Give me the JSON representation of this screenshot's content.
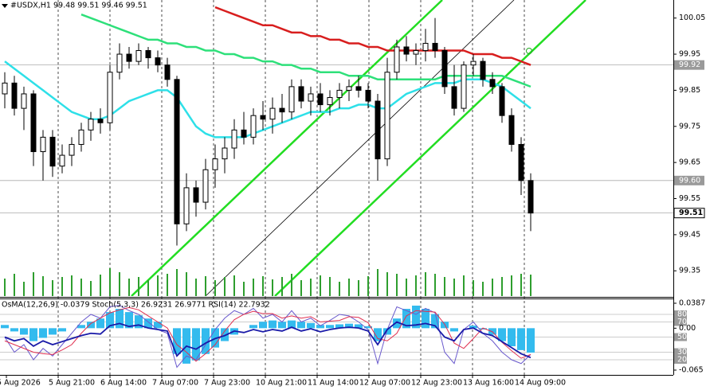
{
  "chart_data": {
    "type": "candlestick",
    "title": "#USDX,H1  99.48 99.51 99.46 99.51",
    "indicator_title": "OsMA(12,26,9) -0.0379  Stoch(5,3,3) 26.9231 26.9771  RSI(14) 22.7932",
    "time_labels": [
      "5 Aug 2026",
      "5 Aug 21:00",
      "6 Aug 14:00",
      "7 Aug 07:00",
      "7 Aug 23:00",
      "10 Aug 21:00",
      "11 Aug 14:00",
      "12 Aug 07:00",
      "12 Aug 23:00",
      "13 Aug 16:00",
      "14 Aug 09:00"
    ],
    "ylim": [
      99.28,
      100.1
    ],
    "yticks": [
      100.05,
      99.95,
      99.85,
      99.75,
      99.65,
      99.55,
      99.45,
      99.35
    ],
    "price_levels": [
      99.92,
      {
        "value": 99.6,
        "label": "99.60"
      },
      99.51
    ],
    "up_color": "#000000",
    "down_color": "#000000",
    "candles": [
      [
        99.84,
        99.9,
        99.8,
        99.87
      ],
      [
        99.87,
        99.89,
        99.78,
        99.8
      ],
      [
        99.8,
        99.86,
        99.74,
        99.84
      ],
      [
        99.84,
        99.85,
        99.64,
        99.68
      ],
      [
        99.68,
        99.74,
        99.6,
        99.72
      ],
      [
        99.72,
        99.74,
        99.61,
        99.64
      ],
      [
        99.64,
        99.7,
        99.62,
        99.67
      ],
      [
        99.67,
        99.72,
        99.64,
        99.7
      ],
      [
        99.7,
        99.76,
        99.68,
        99.74
      ],
      [
        99.74,
        99.79,
        99.71,
        99.77
      ],
      [
        99.77,
        99.8,
        99.73,
        99.76
      ],
      [
        99.76,
        99.92,
        99.74,
        99.9
      ],
      [
        99.9,
        99.98,
        99.88,
        99.95
      ],
      [
        99.95,
        99.97,
        99.91,
        99.93
      ],
      [
        99.93,
        99.98,
        99.92,
        99.96
      ],
      [
        99.96,
        99.97,
        99.91,
        99.94
      ],
      [
        99.94,
        99.96,
        99.9,
        99.92
      ],
      [
        99.92,
        99.94,
        99.86,
        99.88
      ],
      [
        99.88,
        99.89,
        99.42,
        99.48
      ],
      [
        99.48,
        99.62,
        99.46,
        99.58
      ],
      [
        99.58,
        99.6,
        99.5,
        99.54
      ],
      [
        99.54,
        99.66,
        99.52,
        99.63
      ],
      [
        99.63,
        99.7,
        99.58,
        99.66
      ],
      [
        99.66,
        99.72,
        99.62,
        99.69
      ],
      [
        99.69,
        99.77,
        99.66,
        99.74
      ],
      [
        99.74,
        99.79,
        99.7,
        99.72
      ],
      [
        99.72,
        99.8,
        99.7,
        99.78
      ],
      [
        99.78,
        99.82,
        99.74,
        99.77
      ],
      [
        99.77,
        99.83,
        99.73,
        99.8
      ],
      [
        99.8,
        99.84,
        99.76,
        99.79
      ],
      [
        99.79,
        99.88,
        99.77,
        99.86
      ],
      [
        99.86,
        99.88,
        99.8,
        99.82
      ],
      [
        99.82,
        99.86,
        99.78,
        99.84
      ],
      [
        99.84,
        99.87,
        99.79,
        99.81
      ],
      [
        99.81,
        99.85,
        99.78,
        99.83
      ],
      [
        99.83,
        99.87,
        99.8,
        99.85
      ],
      [
        99.85,
        99.88,
        99.82,
        99.86
      ],
      [
        99.86,
        99.89,
        99.83,
        99.85
      ],
      [
        99.85,
        99.87,
        99.8,
        99.82
      ],
      [
        99.82,
        99.84,
        99.6,
        99.66
      ],
      [
        99.66,
        99.94,
        99.64,
        99.9
      ],
      [
        99.9,
        99.99,
        99.88,
        99.97
      ],
      [
        99.97,
        100.0,
        99.93,
        99.95
      ],
      [
        99.95,
        99.98,
        99.92,
        99.96
      ],
      [
        99.96,
        100.02,
        99.93,
        99.98
      ],
      [
        99.98,
        100.05,
        99.94,
        99.96
      ],
      [
        99.96,
        99.97,
        99.84,
        99.86
      ],
      [
        99.86,
        99.92,
        99.78,
        99.8
      ],
      [
        99.8,
        99.93,
        99.79,
        99.92
      ],
      [
        99.92,
        99.95,
        99.89,
        99.93
      ],
      [
        99.93,
        99.94,
        99.86,
        99.88
      ],
      [
        99.88,
        99.9,
        99.84,
        99.86
      ],
      [
        99.86,
        99.87,
        99.76,
        99.78
      ],
      [
        99.78,
        99.8,
        99.68,
        99.7
      ],
      [
        99.7,
        99.72,
        99.56,
        99.6
      ],
      [
        99.6,
        99.62,
        99.46,
        99.51
      ]
    ],
    "volume_color": "#2e9e2e",
    "volumes": [
      22,
      28,
      18,
      30,
      25,
      20,
      24,
      26,
      22,
      19,
      27,
      35,
      30,
      22,
      24,
      20,
      26,
      28,
      34,
      30,
      22,
      25,
      20,
      24,
      26,
      18,
      22,
      25,
      21,
      24,
      28,
      20,
      22,
      26,
      24,
      18,
      22,
      20,
      25,
      34,
      30,
      28,
      22,
      26,
      30,
      28,
      24,
      22,
      26,
      20,
      18,
      22,
      24,
      26,
      28,
      27
    ],
    "volume_max": 40,
    "ma_series": [
      {
        "color": "#d81e1e",
        "values": [
          null,
          null,
          null,
          null,
          null,
          null,
          null,
          null,
          null,
          null,
          null,
          null,
          null,
          null,
          null,
          null,
          null,
          null,
          null,
          null,
          null,
          null,
          100.08,
          100.07,
          100.06,
          100.05,
          100.04,
          100.03,
          100.03,
          100.02,
          100.01,
          100.01,
          100.0,
          100.0,
          99.99,
          99.99,
          99.98,
          99.98,
          99.97,
          99.97,
          99.96,
          99.96,
          99.96,
          99.96,
          99.96,
          99.96,
          99.96,
          99.96,
          99.96,
          99.95,
          99.95,
          99.95,
          99.94,
          99.94,
          99.93,
          99.92
        ]
      },
      {
        "color": "#2ee07a",
        "values": [
          null,
          null,
          null,
          null,
          null,
          null,
          null,
          null,
          100.06,
          100.05,
          100.04,
          100.03,
          100.02,
          100.01,
          100.0,
          99.99,
          99.99,
          99.98,
          99.98,
          99.97,
          99.97,
          99.96,
          99.96,
          99.95,
          99.95,
          99.94,
          99.94,
          99.93,
          99.93,
          99.92,
          99.92,
          99.91,
          99.91,
          99.9,
          99.9,
          99.9,
          99.89,
          99.89,
          99.89,
          99.88,
          99.88,
          99.88,
          99.88,
          99.88,
          99.88,
          99.88,
          99.89,
          99.89,
          99.89,
          99.89,
          99.89,
          99.89,
          99.89,
          99.88,
          99.87,
          99.86
        ]
      },
      {
        "color": "#2ee0e8",
        "values": [
          99.93,
          99.91,
          99.89,
          99.87,
          99.85,
          99.83,
          99.81,
          99.79,
          99.78,
          99.77,
          99.77,
          99.78,
          99.8,
          99.82,
          99.83,
          99.84,
          99.85,
          99.85,
          99.83,
          99.79,
          99.75,
          99.73,
          99.72,
          99.72,
          99.72,
          99.72,
          99.73,
          99.74,
          99.75,
          99.76,
          99.77,
          99.78,
          99.79,
          99.79,
          99.79,
          99.8,
          99.8,
          99.81,
          99.81,
          99.8,
          99.8,
          99.82,
          99.84,
          99.85,
          99.86,
          99.87,
          99.87,
          99.87,
          99.88,
          99.88,
          99.88,
          99.87,
          99.86,
          99.84,
          99.82,
          99.8
        ]
      }
    ],
    "osma_lim": [
      -0.065,
      0.0387
    ],
    "osma_ticks": [
      0.0387,
      {
        "value": 0,
        "label": "0.00"
      },
      -0.065
    ],
    "osma_color": "#33bbee",
    "osma": [
      0.005,
      -0.005,
      -0.01,
      -0.02,
      -0.015,
      -0.01,
      -0.005,
      0.0,
      0.005,
      0.01,
      0.015,
      0.025,
      0.03,
      0.025,
      0.02,
      0.015,
      0.01,
      0.0,
      -0.04,
      -0.055,
      -0.05,
      -0.04,
      -0.03,
      -0.02,
      -0.01,
      0.0,
      0.005,
      0.01,
      0.012,
      0.01,
      0.012,
      0.01,
      0.008,
      0.005,
      0.005,
      0.006,
      0.007,
      0.006,
      0.003,
      -0.02,
      -0.01,
      0.015,
      0.03,
      0.035,
      0.03,
      0.022,
      0.01,
      -0.005,
      0.0,
      0.004,
      -0.002,
      -0.01,
      -0.02,
      -0.028,
      -0.034,
      -0.0379
    ],
    "osc_lim": [
      0,
      100
    ],
    "osc_ticks": [
      80,
      70,
      50,
      30,
      20
    ],
    "osc_series": [
      {
        "color": "#6a5acd",
        "values": [
          50,
          30,
          40,
          20,
          35,
          25,
          40,
          55,
          70,
          80,
          75,
          90,
          92,
          85,
          80,
          70,
          60,
          55,
          10,
          25,
          20,
          40,
          60,
          75,
          85,
          80,
          88,
          75,
          80,
          70,
          85,
          70,
          75,
          65,
          72,
          80,
          78,
          70,
          60,
          15,
          60,
          90,
          85,
          80,
          88,
          82,
          30,
          15,
          60,
          70,
          55,
          45,
          30,
          20,
          15,
          26.9231
        ]
      },
      {
        "color": "#e03050",
        "values": [
          45,
          40,
          35,
          30,
          28,
          27,
          33,
          40,
          55,
          68,
          75,
          82,
          86,
          89,
          86,
          78,
          70,
          62,
          40,
          30,
          18,
          28,
          40,
          58,
          73,
          80,
          84,
          81,
          81,
          75,
          78,
          75,
          77,
          70,
          71,
          72,
          77,
          76,
          69,
          48,
          45,
          55,
          78,
          85,
          84,
          83,
          67,
          42,
          35,
          48,
          62,
          57,
          43,
          32,
          22,
          26.9771
        ]
      },
      {
        "color": "#1a1aa8",
        "values": [
          50,
          45,
          48,
          38,
          45,
          40,
          44,
          48,
          52,
          55,
          54,
          65,
          68,
          64,
          66,
          62,
          60,
          58,
          25,
          38,
          34,
          42,
          48,
          52,
          58,
          56,
          60,
          57,
          60,
          58,
          63,
          58,
          61,
          57,
          60,
          62,
          63,
          62,
          58,
          40,
          60,
          70,
          65,
          66,
          68,
          65,
          50,
          45,
          60,
          62,
          55,
          52,
          44,
          36,
          28,
          22.7932
        ]
      }
    ]
  }
}
